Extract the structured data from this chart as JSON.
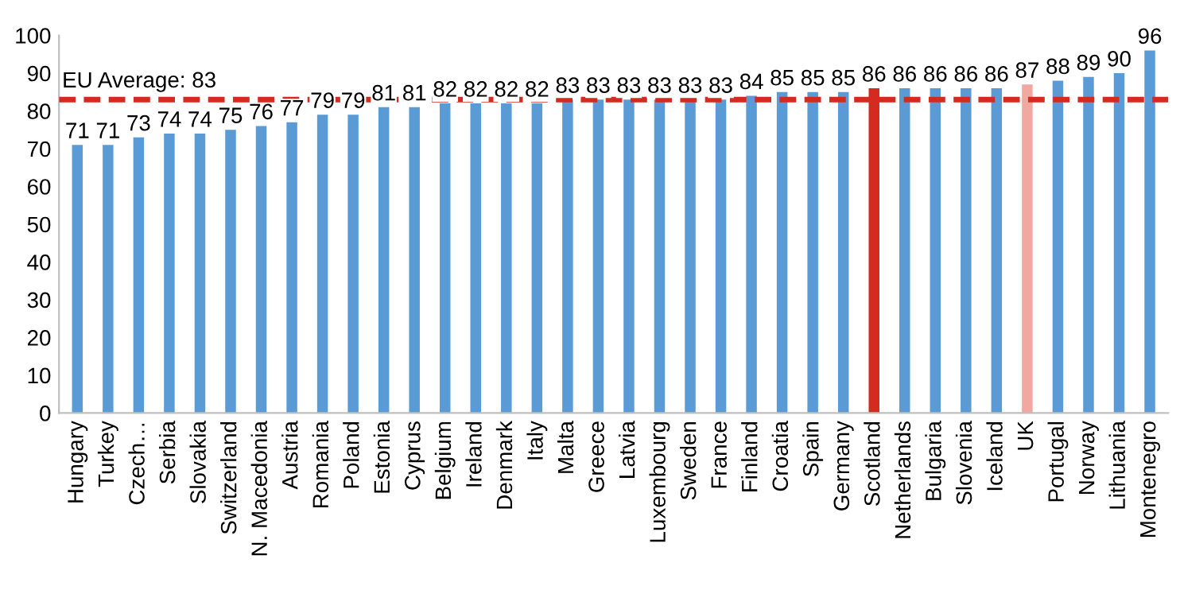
{
  "chart_data": {
    "type": "bar",
    "categories": [
      "Hungary",
      "Turkey",
      "Czech…",
      "Serbia",
      "Slovakia",
      "Switzerland",
      "N. Macedonia",
      "Austria",
      "Romania",
      "Poland",
      "Estonia",
      "Cyprus",
      "Belgium",
      "Ireland",
      "Denmark",
      "Italy",
      "Malta",
      "Greece",
      "Latvia",
      "Luxembourg",
      "Sweden",
      "France",
      "Finland",
      "Croatia",
      "Spain",
      "Germany",
      "Scotland",
      "Netherlands",
      "Bulgaria",
      "Slovenia",
      "Iceland",
      "UK",
      "Portugal",
      "Norway",
      "Lithuania",
      "Montenegro"
    ],
    "values": [
      71,
      71,
      73,
      74,
      74,
      75,
      76,
      77,
      79,
      79,
      81,
      81,
      82,
      82,
      82,
      82,
      83,
      83,
      83,
      83,
      83,
      83,
      84,
      85,
      85,
      85,
      86,
      86,
      86,
      86,
      86,
      87,
      88,
      89,
      90,
      96
    ],
    "colors": [
      "#5b9bd5",
      "#5b9bd5",
      "#5b9bd5",
      "#5b9bd5",
      "#5b9bd5",
      "#5b9bd5",
      "#5b9bd5",
      "#5b9bd5",
      "#5b9bd5",
      "#5b9bd5",
      "#5b9bd5",
      "#5b9bd5",
      "#5b9bd5",
      "#5b9bd5",
      "#5b9bd5",
      "#5b9bd5",
      "#5b9bd5",
      "#5b9bd5",
      "#5b9bd5",
      "#5b9bd5",
      "#5b9bd5",
      "#5b9bd5",
      "#5b9bd5",
      "#5b9bd5",
      "#5b9bd5",
      "#5b9bd5",
      "#d42a1f",
      "#5b9bd5",
      "#5b9bd5",
      "#5b9bd5",
      "#5b9bd5",
      "#f0a8a0",
      "#5b9bd5",
      "#5b9bd5",
      "#5b9bd5",
      "#5b9bd5"
    ],
    "ylim": [
      0,
      100
    ],
    "yticks": [
      0,
      10,
      20,
      30,
      40,
      50,
      60,
      70,
      80,
      90,
      100
    ],
    "ref_lines": [
      {
        "axis": "y",
        "value": 83,
        "label": "EU Average: 83",
        "color": "#d42a1f",
        "line_style": "dashed"
      }
    ],
    "data_labels": true,
    "grid": false
  }
}
